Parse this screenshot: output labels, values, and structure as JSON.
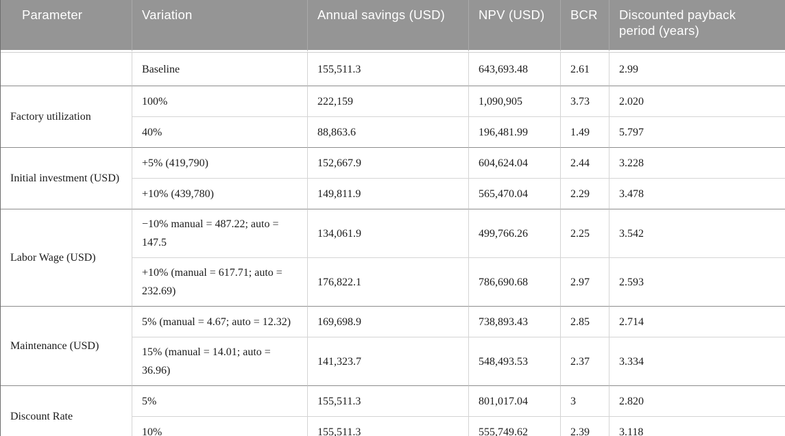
{
  "colors": {
    "header_background": "#959595",
    "header_text": "#ffffff",
    "body_text": "#1b1b1b",
    "light_rule": "#d4d4d4",
    "group_rule": "#8c8c8c",
    "outer_rule": "#6e6e6e"
  },
  "table": {
    "columns": [
      {
        "label": "Parameter"
      },
      {
        "label": "Variation"
      },
      {
        "label": "Annual savings (USD)"
      },
      {
        "label": "NPV (USD)"
      },
      {
        "label": "BCR"
      },
      {
        "label": "Discounted payback period (years)"
      }
    ],
    "groups": [
      {
        "parameter": "",
        "rows": [
          {
            "variation": "Baseline",
            "annual_savings": "155,511.3",
            "npv": "643,693.48",
            "bcr": "2.61",
            "payback": "2.99"
          }
        ]
      },
      {
        "parameter": "Factory utilization",
        "rows": [
          {
            "variation": "100%",
            "annual_savings": "222,159",
            "npv": "1,090,905",
            "bcr": "3.73",
            "payback": "2.020"
          },
          {
            "variation": "40%",
            "annual_savings": "88,863.6",
            "npv": "196,481.99",
            "bcr": "1.49",
            "payback": "5.797"
          }
        ]
      },
      {
        "parameter": "Initial investment (USD)",
        "rows": [
          {
            "variation": "+5% (419,790)",
            "annual_savings": "152,667.9",
            "npv": "604,624.04",
            "bcr": "2.44",
            "payback": "3.228"
          },
          {
            "variation": "+10% (439,780)",
            "annual_savings": "149,811.9",
            "npv": "565,470.04",
            "bcr": "2.29",
            "payback": "3.478"
          }
        ]
      },
      {
        "parameter": "Labor Wage (USD)",
        "rows": [
          {
            "variation": "−10% manual = 487.22; auto = 147.5",
            "annual_savings": "134,061.9",
            "npv": "499,766.26",
            "bcr": "2.25",
            "payback": "3.542"
          },
          {
            "variation": "+10% (manual = 617.71; auto = 232.69)",
            "annual_savings": "176,822.1",
            "npv": "786,690.68",
            "bcr": "2.97",
            "payback": "2.593"
          }
        ]
      },
      {
        "parameter": "Maintenance (USD)",
        "rows": [
          {
            "variation": "5% (manual = 4.67; auto = 12.32)",
            "annual_savings": "169,698.9",
            "npv": "738,893.43",
            "bcr": "2.85",
            "payback": "2.714"
          },
          {
            "variation": "15% (manual = 14.01; auto = 36.96)",
            "annual_savings": "141,323.7",
            "npv": "548,493.53",
            "bcr": "2.37",
            "payback": "3.334"
          }
        ]
      },
      {
        "parameter": "Discount Rate",
        "rows": [
          {
            "variation": "5%",
            "annual_savings": "155,511.3",
            "npv": "801,017.04",
            "bcr": "3",
            "payback": "2.820"
          },
          {
            "variation": "10%",
            "annual_savings": "155,511.3",
            "npv": "555,749.62",
            "bcr": "2.39",
            "payback": "3.118"
          }
        ]
      }
    ]
  }
}
